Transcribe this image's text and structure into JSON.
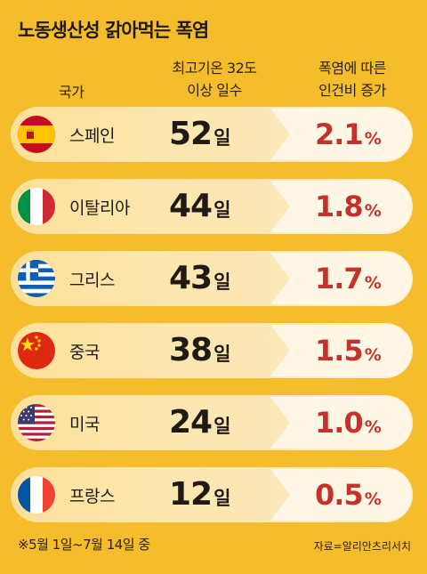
{
  "title": "노동생산성 갉아먹는 폭염",
  "headers": {
    "country": "국가",
    "days_line1": "최고기온 32도",
    "days_line2": "이상 일수",
    "rise_line1": "폭염에 따른",
    "rise_line2": "인건비 증가"
  },
  "rows": [
    {
      "country": "스페인",
      "days": "52",
      "days_unit": "일",
      "pct": "2.1",
      "pct_unit": "%",
      "flag": "spain-flag-icon"
    },
    {
      "country": "이탈리아",
      "days": "44",
      "days_unit": "일",
      "pct": "1.8",
      "pct_unit": "%",
      "flag": "italy-flag-icon"
    },
    {
      "country": "그리스",
      "days": "43",
      "days_unit": "일",
      "pct": "1.7",
      "pct_unit": "%",
      "flag": "greece-flag-icon"
    },
    {
      "country": "중국",
      "days": "38",
      "days_unit": "일",
      "pct": "1.5",
      "pct_unit": "%",
      "flag": "china-flag-icon"
    },
    {
      "country": "미국",
      "days": "24",
      "days_unit": "일",
      "pct": "1.0",
      "pct_unit": "%",
      "flag": "usa-flag-icon"
    },
    {
      "country": "프랑스",
      "days": "12",
      "days_unit": "일",
      "pct": "0.5",
      "pct_unit": "%",
      "flag": "france-flag-icon"
    }
  ],
  "footnote": "※5월 1일~7월 14일 중",
  "source": "자료=알리안츠리서치",
  "colors": {
    "background": "#f5bd2c",
    "percent": "#c5322b",
    "bar": "#fde7b0"
  }
}
